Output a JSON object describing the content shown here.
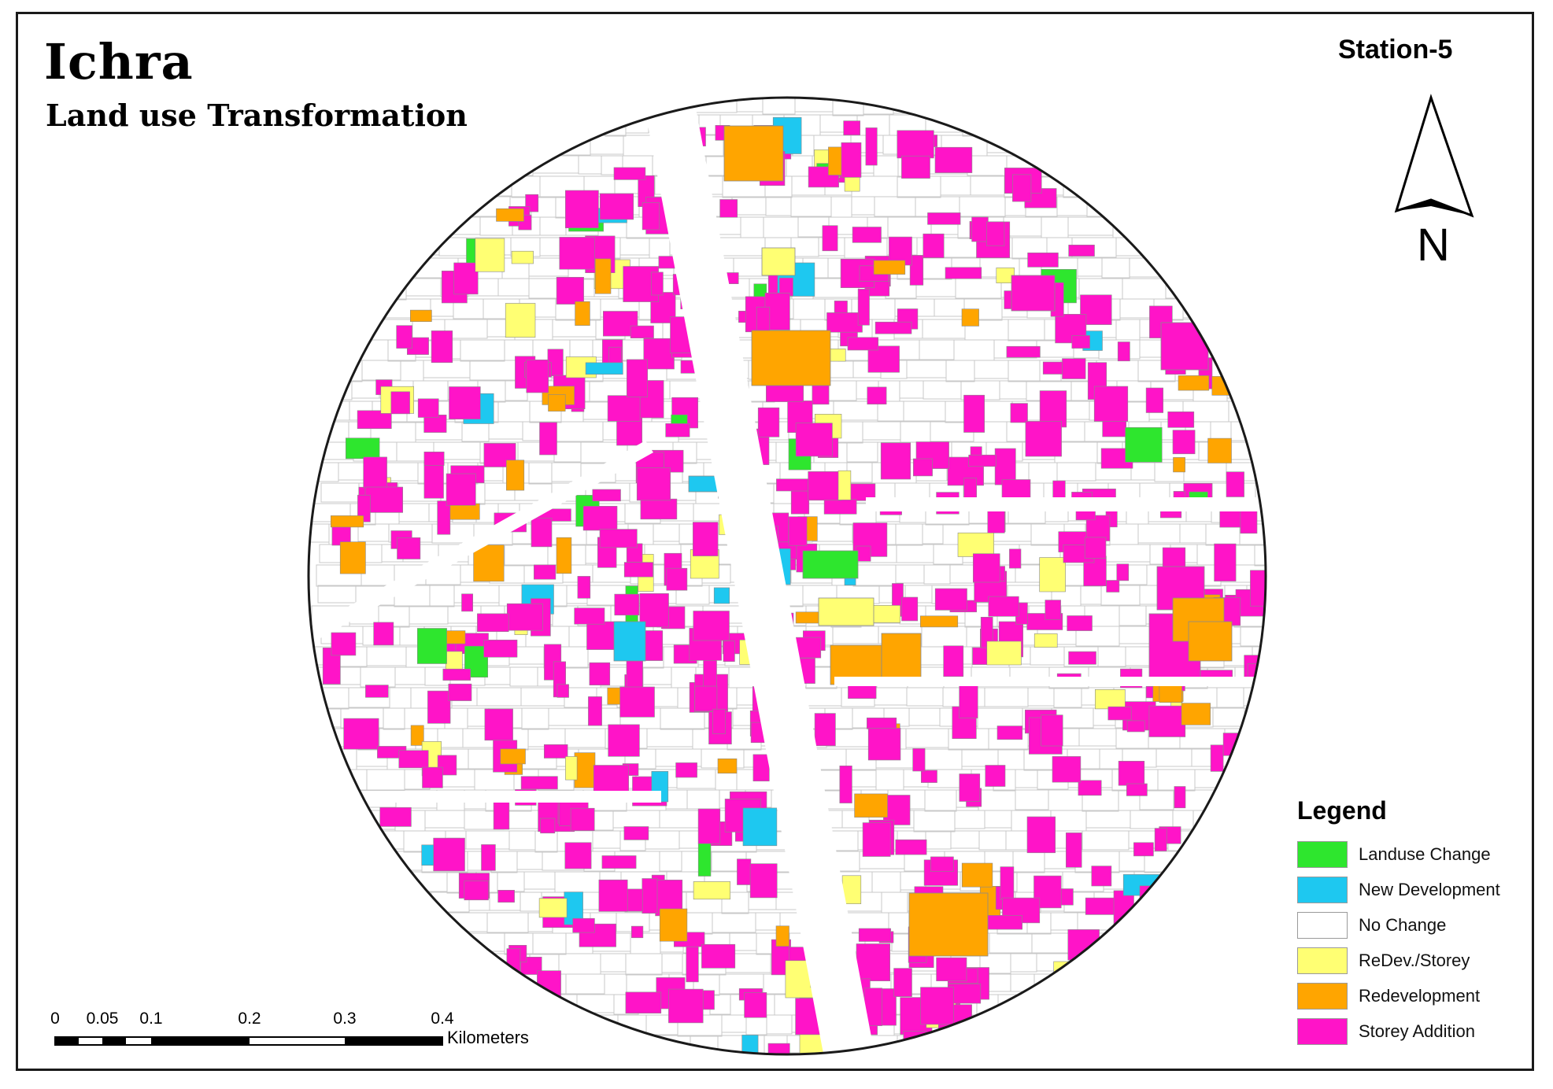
{
  "map": {
    "title": "Ichra",
    "subtitle": "Land use Transformation",
    "station": "Station-5",
    "north_label": "N"
  },
  "legend": {
    "title": "Legend",
    "items": [
      {
        "label": "Landuse Change",
        "color": "#2ee62e"
      },
      {
        "label": "New Development",
        "color": "#1ec8f0"
      },
      {
        "label": "No Change",
        "color": "#ffffff"
      },
      {
        "label": "ReDev./Storey",
        "color": "#ffff73"
      },
      {
        "label": "Redevelopment",
        "color": "#ffa500"
      },
      {
        "label": "Storey Addition",
        "color": "#ff14c8"
      }
    ]
  },
  "scale_bar": {
    "unit": "Kilometers",
    "ticks": [
      "0",
      "0.05",
      "0.1",
      "0.2",
      "0.3",
      "0.4"
    ]
  }
}
